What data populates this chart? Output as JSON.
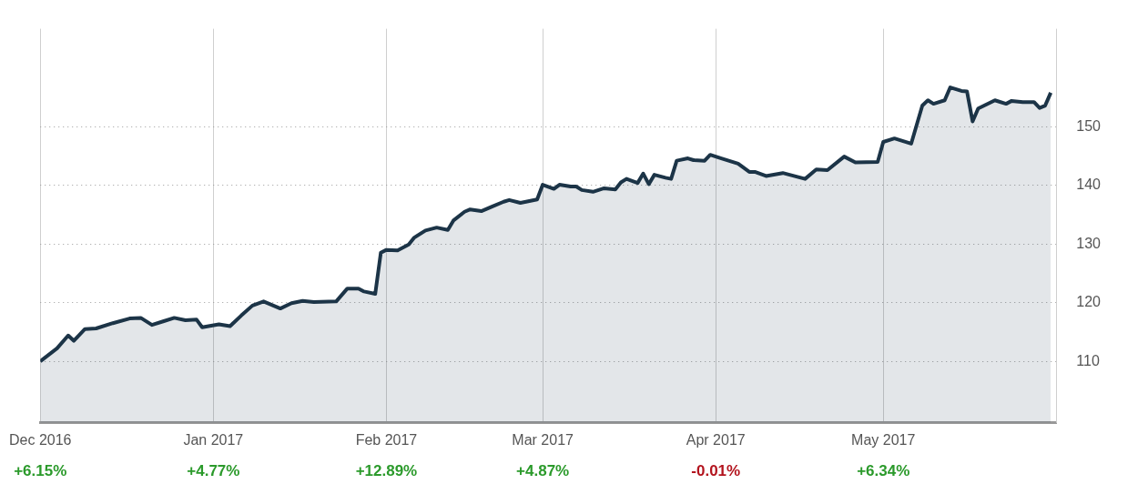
{
  "chart_data": {
    "type": "area",
    "color": "#1c3447",
    "x": [
      "2016-12-01",
      "2016-12-04",
      "2016-12-06",
      "2016-12-07",
      "2016-12-09",
      "2016-12-11",
      "2016-12-14",
      "2016-12-17",
      "2016-12-19",
      "2016-12-21",
      "2016-12-23",
      "2016-12-25",
      "2016-12-27",
      "2016-12-29",
      "2016-12-30",
      "2017-01-02",
      "2017-01-04",
      "2017-01-06",
      "2017-01-08",
      "2017-01-10",
      "2017-01-13",
      "2017-01-15",
      "2017-01-17",
      "2017-01-19",
      "2017-01-23",
      "2017-01-25",
      "2017-01-27",
      "2017-01-28",
      "2017-01-30",
      "2017-01-31",
      "2017-02-01",
      "2017-02-03",
      "2017-02-05",
      "2017-02-06",
      "2017-02-08",
      "2017-02-10",
      "2017-02-12",
      "2017-02-13",
      "2017-02-15",
      "2017-02-16",
      "2017-02-18",
      "2017-02-20",
      "2017-02-22",
      "2017-02-23",
      "2017-02-25",
      "2017-02-27",
      "2017-02-28",
      "2017-03-01",
      "2017-03-03",
      "2017-03-04",
      "2017-03-06",
      "2017-03-07",
      "2017-03-08",
      "2017-03-10",
      "2017-03-12",
      "2017-03-14",
      "2017-03-15",
      "2017-03-16",
      "2017-03-18",
      "2017-03-19",
      "2017-03-20",
      "2017-03-21",
      "2017-03-23",
      "2017-03-24",
      "2017-03-25",
      "2017-03-27",
      "2017-03-28",
      "2017-03-30",
      "2017-03-31",
      "2017-04-02",
      "2017-04-05",
      "2017-04-07",
      "2017-04-08",
      "2017-04-10",
      "2017-04-13",
      "2017-04-17",
      "2017-04-19",
      "2017-04-21",
      "2017-04-24",
      "2017-04-26",
      "2017-04-30",
      "2017-05-01",
      "2017-05-03",
      "2017-05-06",
      "2017-05-08",
      "2017-05-09",
      "2017-05-10",
      "2017-05-12",
      "2017-05-13",
      "2017-05-15",
      "2017-05-16",
      "2017-05-17",
      "2017-05-18",
      "2017-05-21",
      "2017-05-23",
      "2017-05-24",
      "2017-05-26",
      "2017-05-28",
      "2017-05-29",
      "2017-05-30",
      "2017-05-31"
    ],
    "values": [
      110,
      112.2,
      114.4,
      113.5,
      115.5,
      115.6,
      116.5,
      117.3,
      117.4,
      116.2,
      116.8,
      117.4,
      117,
      117.1,
      115.8,
      116.3,
      116,
      117.8,
      119.5,
      120.2,
      119,
      119.9,
      120.3,
      120.1,
      120.2,
      122.4,
      122.4,
      121.9,
      121.5,
      128.5,
      129,
      128.9,
      129.9,
      131.1,
      132.3,
      132.8,
      132.4,
      134,
      135.5,
      135.9,
      135.6,
      136.4,
      137.2,
      137.5,
      137,
      137.4,
      137.6,
      140.1,
      139.4,
      140.1,
      139.8,
      139.8,
      139.2,
      138.9,
      139.5,
      139.3,
      140.5,
      141.1,
      140.4,
      142,
      140.2,
      141.8,
      141.3,
      141.1,
      144.2,
      144.6,
      144.3,
      144.2,
      145.2,
      144.6,
      143.7,
      142.3,
      142.3,
      141.6,
      142.1,
      141.1,
      142.7,
      142.6,
      144.9,
      143.9,
      144,
      147.4,
      148,
      147.1,
      153.6,
      154.5,
      153.9,
      154.5,
      156.7,
      156.1,
      156,
      150.9,
      153.1,
      154.5,
      153.9,
      154.4,
      154.2,
      154.2,
      153.2,
      153.6,
      155.8
    ],
    "xlim": [
      "2016-12-01",
      "2017-06-01"
    ],
    "xticks": [
      {
        "value": "2016-12-01",
        "label": "Dec 2016"
      },
      {
        "value": "2017-01-01",
        "label": "Jan 2017"
      },
      {
        "value": "2017-02-01",
        "label": "Feb 2017"
      },
      {
        "value": "2017-03-01",
        "label": "Mar 2017"
      },
      {
        "value": "2017-04-01",
        "label": "Apr 2017"
      },
      {
        "value": "2017-05-01",
        "label": "May 2017"
      }
    ],
    "ylim": [
      99.5,
      166.7
    ],
    "yticks": [
      110,
      120,
      130,
      140,
      150
    ],
    "grid": true,
    "marker": "none",
    "annotations": [
      "+6.15%",
      "+4.77%",
      "+12.89%",
      "+4.87%",
      "-0.01%",
      "+6.34%"
    ]
  }
}
